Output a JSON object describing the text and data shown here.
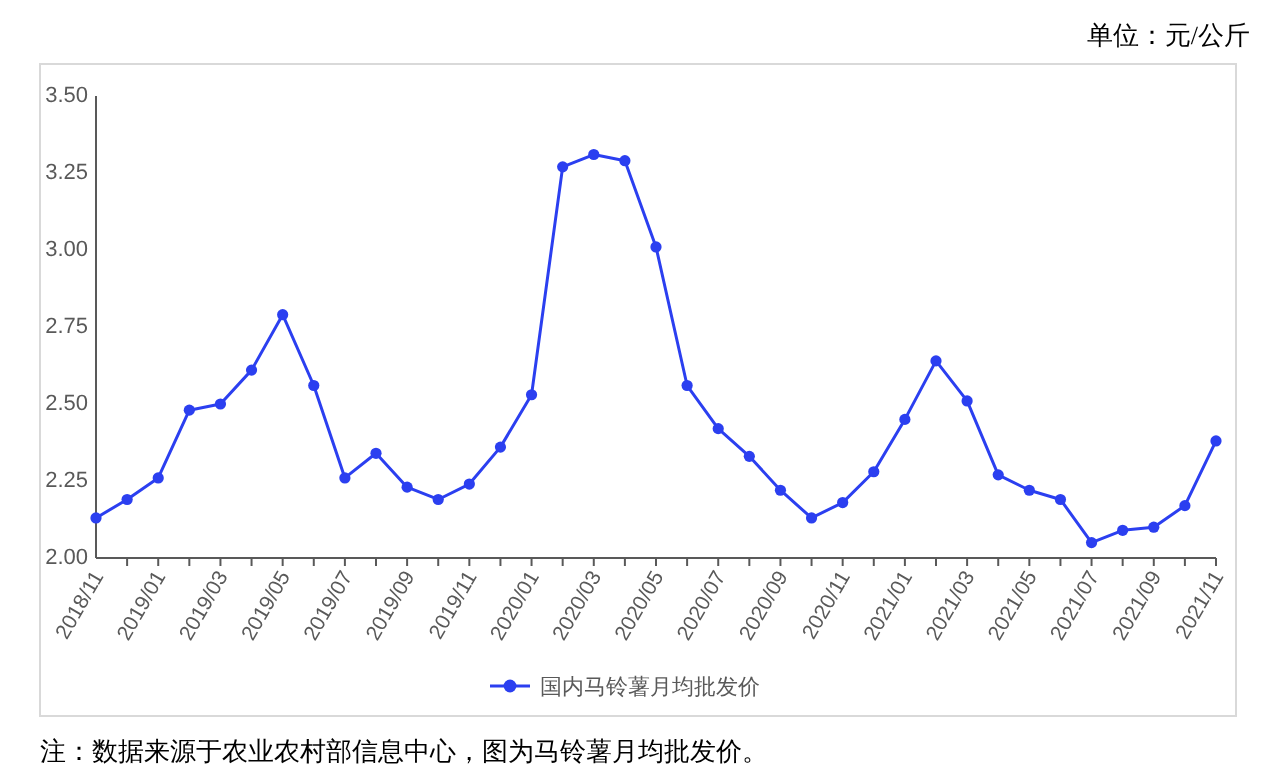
{
  "chart_data": {
    "type": "line",
    "categories": [
      "2018/11",
      null,
      "2019/01",
      null,
      "2019/03",
      null,
      "2019/05",
      null,
      "2019/07",
      null,
      "2019/09",
      null,
      "2019/11",
      null,
      "2020/01",
      null,
      "2020/03",
      null,
      "2020/05",
      null,
      "2020/07",
      null,
      "2020/09",
      null,
      "2020/11",
      null,
      "2021/01",
      null,
      "2021/03",
      null,
      "2021/05",
      null,
      "2021/07",
      null,
      "2021/09",
      null,
      "2021/11"
    ],
    "series": [
      {
        "name": "国内马铃薯月均批发价",
        "color": "#2b3ff0",
        "values": [
          2.13,
          2.19,
          2.26,
          2.48,
          2.5,
          2.61,
          2.79,
          2.56,
          2.26,
          2.34,
          2.23,
          2.19,
          2.24,
          2.36,
          2.53,
          3.27,
          3.31,
          3.29,
          3.01,
          2.56,
          2.42,
          2.33,
          2.22,
          2.13,
          2.18,
          2.28,
          2.45,
          2.64,
          2.51,
          2.27,
          2.22,
          2.19,
          2.05,
          2.09,
          2.1,
          2.17,
          2.38
        ]
      }
    ],
    "ylim": [
      2,
      3.5
    ],
    "yticks": [
      {
        "value": 2,
        "label": "2.00"
      },
      {
        "value": 2.25,
        "label": "2.25"
      },
      {
        "value": 2.5,
        "label": "2.50"
      },
      {
        "value": 2.75,
        "label": "2.75"
      },
      {
        "value": 3,
        "label": "3.00"
      },
      {
        "value": 3.25,
        "label": "3.25"
      },
      {
        "value": 3.5,
        "label": "3.50"
      }
    ],
    "legend": "bottom",
    "marker": "circle",
    "line_style": "solid",
    "annotations": [
      "单位：元/公斤",
      "注：数据来源于农业农村部信息中心，图为马铃薯月均批发价。"
    ]
  }
}
